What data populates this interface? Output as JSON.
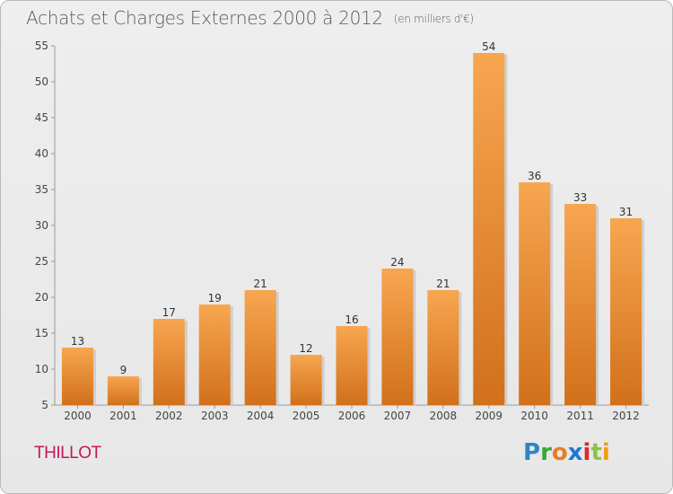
{
  "chart_data": {
    "type": "bar",
    "title": "Achats et Charges Externes 2000 à 2012",
    "subtitle": "(en milliers d'€)",
    "categories": [
      "2000",
      "2001",
      "2002",
      "2003",
      "2004",
      "2005",
      "2006",
      "2007",
      "2008",
      "2009",
      "2010",
      "2011",
      "2012"
    ],
    "values": [
      13,
      9,
      17,
      19,
      21,
      12,
      16,
      24,
      21,
      54,
      36,
      33,
      31
    ],
    "ylim": [
      5,
      55
    ],
    "yticks": [
      5,
      10,
      15,
      20,
      25,
      30,
      35,
      40,
      45,
      50,
      55
    ],
    "grid": false,
    "bar_color_top": "#f7a650",
    "bar_color_bottom": "#d2701b"
  },
  "footer": {
    "place_name": "THILLOT",
    "brand_letters": [
      "P",
      "r",
      "o",
      "x",
      "i",
      "t",
      "i"
    ]
  }
}
